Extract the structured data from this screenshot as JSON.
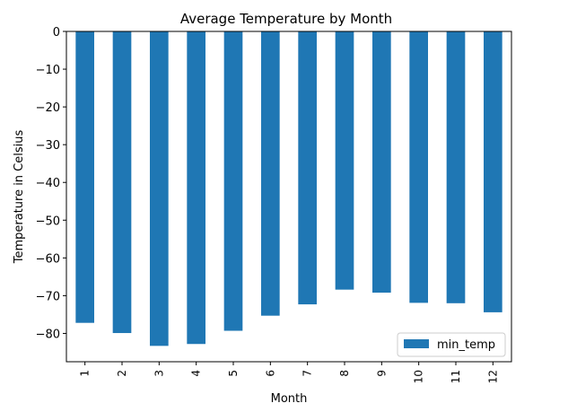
{
  "chart_data": {
    "type": "bar",
    "title": "Average Temperature by Month",
    "xlabel": "Month",
    "ylabel": "Temperature in Celsius",
    "categories": [
      "1",
      "2",
      "3",
      "4",
      "5",
      "6",
      "7",
      "8",
      "9",
      "10",
      "11",
      "12"
    ],
    "series": [
      {
        "name": "min_temp",
        "color": "#1f77b4",
        "values": [
          -77.2,
          -79.9,
          -83.3,
          -82.8,
          -79.3,
          -75.3,
          -72.3,
          -68.4,
          -69.2,
          -71.9,
          -72.0,
          -74.4
        ]
      }
    ],
    "ylim": [
      -87.5,
      0
    ],
    "yticks": [
      0,
      -10,
      -20,
      -30,
      -40,
      -50,
      -60,
      -70,
      -80
    ],
    "legend_position": "lower-right",
    "grid": false
  }
}
